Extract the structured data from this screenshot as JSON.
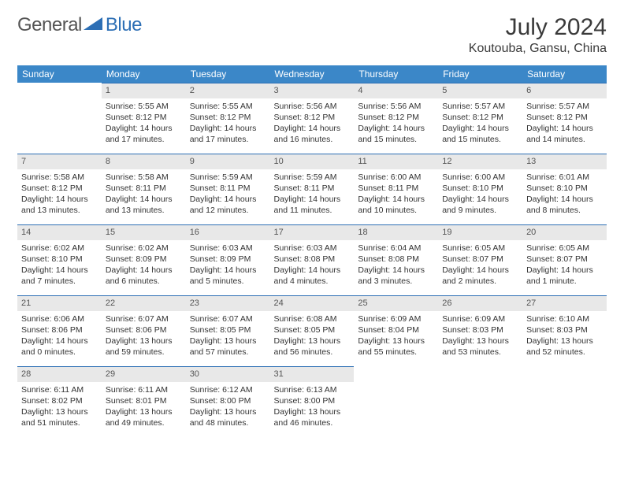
{
  "brand": {
    "part1": "General",
    "part2": "Blue"
  },
  "title": "July 2024",
  "location": "Koutouba, Gansu, China",
  "colors": {
    "header_bg": "#3b87c8",
    "header_text": "#ffffff",
    "daynum_bg": "#e8e8e8",
    "daynum_border": "#2d6fb5",
    "body_text": "#333333",
    "title_text": "#3a3a3a"
  },
  "fonts": {
    "title_pt": 30,
    "location_pt": 16,
    "th_pt": 12,
    "cell_pt": 10.5
  },
  "weekdays": [
    "Sunday",
    "Monday",
    "Tuesday",
    "Wednesday",
    "Thursday",
    "Friday",
    "Saturday"
  ],
  "weeks": [
    [
      {
        "empty": true
      },
      {
        "n": "1",
        "sr": "Sunrise: 5:55 AM",
        "ss": "Sunset: 8:12 PM",
        "d1": "Daylight: 14 hours",
        "d2": "and 17 minutes."
      },
      {
        "n": "2",
        "sr": "Sunrise: 5:55 AM",
        "ss": "Sunset: 8:12 PM",
        "d1": "Daylight: 14 hours",
        "d2": "and 17 minutes."
      },
      {
        "n": "3",
        "sr": "Sunrise: 5:56 AM",
        "ss": "Sunset: 8:12 PM",
        "d1": "Daylight: 14 hours",
        "d2": "and 16 minutes."
      },
      {
        "n": "4",
        "sr": "Sunrise: 5:56 AM",
        "ss": "Sunset: 8:12 PM",
        "d1": "Daylight: 14 hours",
        "d2": "and 15 minutes."
      },
      {
        "n": "5",
        "sr": "Sunrise: 5:57 AM",
        "ss": "Sunset: 8:12 PM",
        "d1": "Daylight: 14 hours",
        "d2": "and 15 minutes."
      },
      {
        "n": "6",
        "sr": "Sunrise: 5:57 AM",
        "ss": "Sunset: 8:12 PM",
        "d1": "Daylight: 14 hours",
        "d2": "and 14 minutes."
      }
    ],
    [
      {
        "n": "7",
        "sr": "Sunrise: 5:58 AM",
        "ss": "Sunset: 8:12 PM",
        "d1": "Daylight: 14 hours",
        "d2": "and 13 minutes."
      },
      {
        "n": "8",
        "sr": "Sunrise: 5:58 AM",
        "ss": "Sunset: 8:11 PM",
        "d1": "Daylight: 14 hours",
        "d2": "and 13 minutes."
      },
      {
        "n": "9",
        "sr": "Sunrise: 5:59 AM",
        "ss": "Sunset: 8:11 PM",
        "d1": "Daylight: 14 hours",
        "d2": "and 12 minutes."
      },
      {
        "n": "10",
        "sr": "Sunrise: 5:59 AM",
        "ss": "Sunset: 8:11 PM",
        "d1": "Daylight: 14 hours",
        "d2": "and 11 minutes."
      },
      {
        "n": "11",
        "sr": "Sunrise: 6:00 AM",
        "ss": "Sunset: 8:11 PM",
        "d1": "Daylight: 14 hours",
        "d2": "and 10 minutes."
      },
      {
        "n": "12",
        "sr": "Sunrise: 6:00 AM",
        "ss": "Sunset: 8:10 PM",
        "d1": "Daylight: 14 hours",
        "d2": "and 9 minutes."
      },
      {
        "n": "13",
        "sr": "Sunrise: 6:01 AM",
        "ss": "Sunset: 8:10 PM",
        "d1": "Daylight: 14 hours",
        "d2": "and 8 minutes."
      }
    ],
    [
      {
        "n": "14",
        "sr": "Sunrise: 6:02 AM",
        "ss": "Sunset: 8:10 PM",
        "d1": "Daylight: 14 hours",
        "d2": "and 7 minutes."
      },
      {
        "n": "15",
        "sr": "Sunrise: 6:02 AM",
        "ss": "Sunset: 8:09 PM",
        "d1": "Daylight: 14 hours",
        "d2": "and 6 minutes."
      },
      {
        "n": "16",
        "sr": "Sunrise: 6:03 AM",
        "ss": "Sunset: 8:09 PM",
        "d1": "Daylight: 14 hours",
        "d2": "and 5 minutes."
      },
      {
        "n": "17",
        "sr": "Sunrise: 6:03 AM",
        "ss": "Sunset: 8:08 PM",
        "d1": "Daylight: 14 hours",
        "d2": "and 4 minutes."
      },
      {
        "n": "18",
        "sr": "Sunrise: 6:04 AM",
        "ss": "Sunset: 8:08 PM",
        "d1": "Daylight: 14 hours",
        "d2": "and 3 minutes."
      },
      {
        "n": "19",
        "sr": "Sunrise: 6:05 AM",
        "ss": "Sunset: 8:07 PM",
        "d1": "Daylight: 14 hours",
        "d2": "and 2 minutes."
      },
      {
        "n": "20",
        "sr": "Sunrise: 6:05 AM",
        "ss": "Sunset: 8:07 PM",
        "d1": "Daylight: 14 hours",
        "d2": "and 1 minute."
      }
    ],
    [
      {
        "n": "21",
        "sr": "Sunrise: 6:06 AM",
        "ss": "Sunset: 8:06 PM",
        "d1": "Daylight: 14 hours",
        "d2": "and 0 minutes."
      },
      {
        "n": "22",
        "sr": "Sunrise: 6:07 AM",
        "ss": "Sunset: 8:06 PM",
        "d1": "Daylight: 13 hours",
        "d2": "and 59 minutes."
      },
      {
        "n": "23",
        "sr": "Sunrise: 6:07 AM",
        "ss": "Sunset: 8:05 PM",
        "d1": "Daylight: 13 hours",
        "d2": "and 57 minutes."
      },
      {
        "n": "24",
        "sr": "Sunrise: 6:08 AM",
        "ss": "Sunset: 8:05 PM",
        "d1": "Daylight: 13 hours",
        "d2": "and 56 minutes."
      },
      {
        "n": "25",
        "sr": "Sunrise: 6:09 AM",
        "ss": "Sunset: 8:04 PM",
        "d1": "Daylight: 13 hours",
        "d2": "and 55 minutes."
      },
      {
        "n": "26",
        "sr": "Sunrise: 6:09 AM",
        "ss": "Sunset: 8:03 PM",
        "d1": "Daylight: 13 hours",
        "d2": "and 53 minutes."
      },
      {
        "n": "27",
        "sr": "Sunrise: 6:10 AM",
        "ss": "Sunset: 8:03 PM",
        "d1": "Daylight: 13 hours",
        "d2": "and 52 minutes."
      }
    ],
    [
      {
        "n": "28",
        "sr": "Sunrise: 6:11 AM",
        "ss": "Sunset: 8:02 PM",
        "d1": "Daylight: 13 hours",
        "d2": "and 51 minutes."
      },
      {
        "n": "29",
        "sr": "Sunrise: 6:11 AM",
        "ss": "Sunset: 8:01 PM",
        "d1": "Daylight: 13 hours",
        "d2": "and 49 minutes."
      },
      {
        "n": "30",
        "sr": "Sunrise: 6:12 AM",
        "ss": "Sunset: 8:00 PM",
        "d1": "Daylight: 13 hours",
        "d2": "and 48 minutes."
      },
      {
        "n": "31",
        "sr": "Sunrise: 6:13 AM",
        "ss": "Sunset: 8:00 PM",
        "d1": "Daylight: 13 hours",
        "d2": "and 46 minutes."
      },
      {
        "empty": true
      },
      {
        "empty": true
      },
      {
        "empty": true
      }
    ]
  ]
}
